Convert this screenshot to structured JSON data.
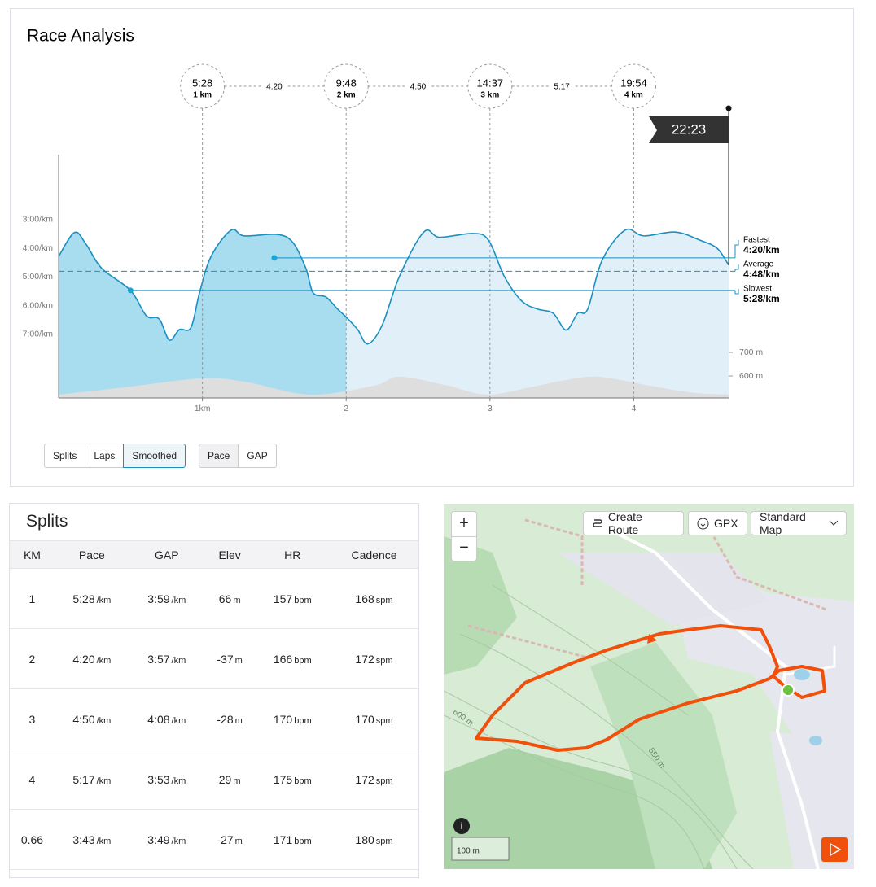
{
  "race_analysis": {
    "title": "Race Analysis",
    "markers": [
      {
        "time": "5:28",
        "distance": {
          "value": 1,
          "label": "1 km"
        }
      },
      {
        "time": "9:48",
        "distance": {
          "value": 2,
          "label": "2 km"
        }
      },
      {
        "time": "14:37",
        "distance": {
          "value": 3,
          "label": "3 km"
        }
      },
      {
        "time": "19:54",
        "distance": {
          "value": 4,
          "label": "4 km"
        }
      }
    ],
    "segment_paces": [
      "4:20",
      "4:50",
      "5:17"
    ],
    "finish_time": "22:23",
    "xlim": [
      0,
      4.66
    ],
    "xticks": [
      {
        "value": 1,
        "label": "1km"
      },
      2,
      3,
      4
    ],
    "ylim": [
      553,
      44
    ],
    "yticks": [
      {
        "value": 180,
        "label": "3:00/km"
      },
      {
        "value": 240,
        "label": "4:00/km"
      },
      {
        "value": 300,
        "label": "5:00/km"
      },
      {
        "value": 360,
        "label": "6:00/km"
      },
      {
        "value": 420,
        "label": "7:00/km"
      }
    ],
    "elevation_ylim": [
      507,
      1538
    ],
    "elevation_ticks": [
      {
        "value": 700,
        "label": "700 m"
      },
      {
        "value": 600,
        "label": "600 m"
      }
    ],
    "highlight_to": 2,
    "pace": {
      "color": "#1a8fc0",
      "x": [
        0,
        0.11,
        0.19,
        0.3,
        0.5,
        0.61,
        0.7,
        0.77,
        0.84,
        0.92,
        0.98,
        1.06,
        1.2,
        1.29,
        1.52,
        1.63,
        1.72,
        1.77,
        1.86,
        1.94,
        2.0,
        2.08,
        2.15,
        2.25,
        2.37,
        2.54,
        2.65,
        2.88,
        2.99,
        3.1,
        3.22,
        3.33,
        3.44,
        3.53,
        3.61,
        3.68,
        3.78,
        3.94,
        4.07,
        4.29,
        4.46,
        4.58,
        4.66
      ],
      "values": [
        257,
        207,
        231,
        282,
        328,
        381,
        388,
        432,
        410,
        406,
        333,
        257,
        202,
        214,
        211,
        228,
        282,
        333,
        342,
        367,
        384,
        410,
        440,
        401,
        299,
        206,
        217,
        209,
        223,
        299,
        350,
        367,
        376,
        411,
        376,
        367,
        265,
        202,
        214,
        206,
        223,
        240,
        275
      ]
    },
    "elevation": {
      "color": "#dedede",
      "x": [
        0,
        0.5,
        1.0,
        1.3,
        1.75,
        2.2,
        2.37,
        2.7,
        2.98,
        3.3,
        3.5,
        3.75,
        4.1,
        4.4,
        4.66
      ],
      "values": [
        521,
        555,
        590,
        575,
        521,
        560,
        597,
        560,
        521,
        555,
        580,
        597,
        560,
        530,
        521
      ]
    },
    "references": [
      {
        "name": "Fastest",
        "value": 260,
        "label": "4:20/km",
        "at": 1.5,
        "style": "solid"
      },
      {
        "name": "Average",
        "value": 288,
        "label": "4:48/km",
        "style": "dashed"
      },
      {
        "name": "Slowest",
        "value": 328,
        "label": "5:28/km",
        "at": 0.5,
        "style": "solid"
      }
    ],
    "view_toggles": [
      {
        "label": "Splits",
        "active": false
      },
      {
        "label": "Laps",
        "active": false
      },
      {
        "label": "Smoothed",
        "active": true
      }
    ],
    "metric_toggles": [
      {
        "label": "Pace",
        "active": true
      },
      {
        "label": "GAP",
        "active": false
      }
    ]
  },
  "splits": {
    "title": "Splits",
    "columns": [
      "KM",
      "Pace",
      "GAP",
      "Elev",
      "HR",
      "Cadence"
    ],
    "units": {
      "pace": "/km",
      "gap": "/km",
      "elev": "m",
      "hr": "bpm",
      "cadence": "spm"
    },
    "rows": [
      {
        "km": 1,
        "pace": "5:28",
        "gap": "3:59",
        "elev": 66,
        "hr": 157,
        "cadence": 168
      },
      {
        "km": 2,
        "pace": "4:20",
        "gap": "3:57",
        "elev": -37,
        "hr": 166,
        "cadence": 172
      },
      {
        "km": 3,
        "pace": "4:50",
        "gap": "4:08",
        "elev": -28,
        "hr": 170,
        "cadence": 170
      },
      {
        "km": 4,
        "pace": "5:17",
        "gap": "3:53",
        "elev": 29,
        "hr": 175,
        "cadence": 172
      },
      {
        "km": 0.66,
        "pace": "3:43",
        "gap": "3:49",
        "elev": -27,
        "hr": 171,
        "cadence": 180
      }
    ]
  },
  "map": {
    "zoom_in": "+",
    "zoom_out": "−",
    "buttons": [
      "Create Route",
      "GPX",
      "Standard Map"
    ],
    "scale": "100 m",
    "contours": [
      "600 m",
      "550 m"
    ]
  }
}
